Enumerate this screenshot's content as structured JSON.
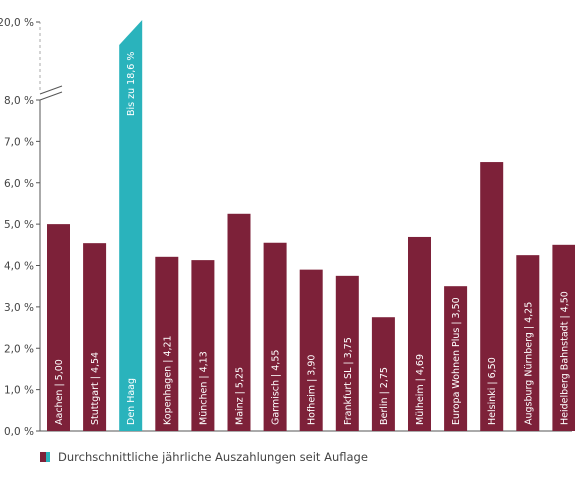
{
  "chart_data": {
    "type": "bar",
    "categories": [
      "Aachen | 5,00",
      "Stuttgart | 4,54",
      "Den Haag",
      "Kopenhagen | 4,21",
      "München | 4,13",
      "Mainz | 5,25",
      "Garmisch | 4,55",
      "Hofheim | 3,90",
      "Frankfurt SL | 3,75",
      "Berlin | 2,75",
      "Mülheim | 4,69",
      "Europa Wohnen Plus | 3,50",
      "Helsinki | 6,50",
      "Augsburg Nürnberg | 4,25",
      "Heidelberg Bahnstadt | 4,50"
    ],
    "values": [
      5.0,
      4.54,
      18.6,
      4.21,
      4.13,
      5.25,
      4.55,
      3.9,
      3.75,
      2.75,
      4.69,
      3.5,
      6.5,
      4.25,
      4.5
    ],
    "highlight_index": 2,
    "highlight_annotation": "Bis zu 18,6 %",
    "yticks": [
      "0,0 %",
      "1,0 %",
      "2,0 %",
      "3,0 %",
      "4,0 %",
      "5,0 %",
      "6,0 %",
      "7,0 %",
      "8,0 %",
      "20,0 %"
    ],
    "ylim": [
      0,
      8
    ],
    "y_break": {
      "from": 8,
      "to": 20
    },
    "legend": "Durchschnittliche jährliche Auszahlungen seit Auflage",
    "legend_placement": "bottom-left",
    "grid": false,
    "colors": {
      "bar": "#7d2139",
      "highlight": "#2ab3bc",
      "axis": "#555555"
    }
  }
}
